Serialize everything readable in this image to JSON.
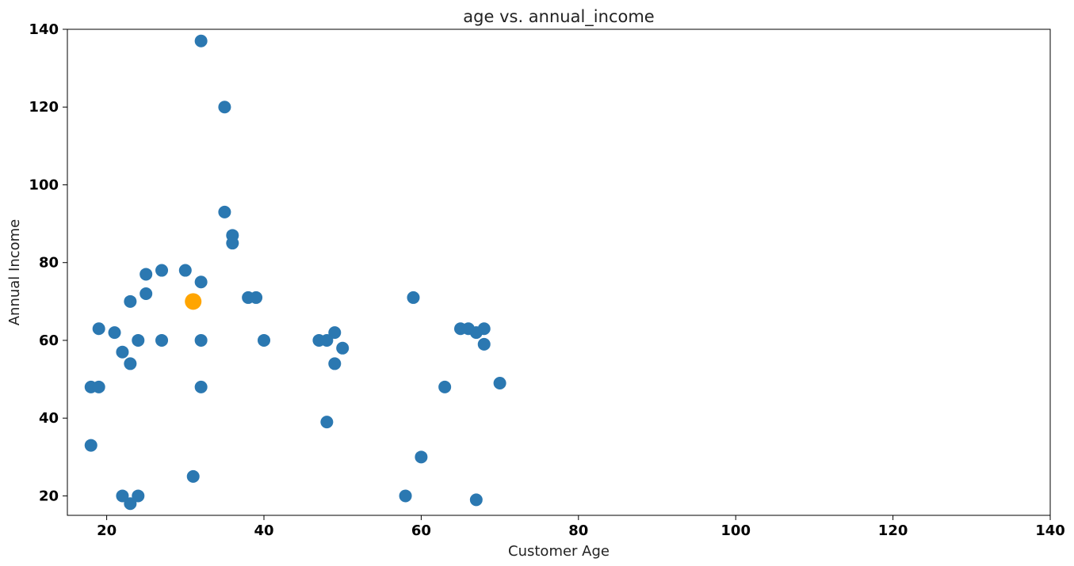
{
  "chart_data": {
    "type": "scatter",
    "title": "age vs. annual_income",
    "xlabel": "Customer Age",
    "ylabel": "Annual Income",
    "xlim": [
      15,
      140
    ],
    "ylim": [
      15,
      140
    ],
    "xticks": [
      20,
      40,
      60,
      80,
      100,
      120,
      140
    ],
    "yticks": [
      20,
      40,
      60,
      80,
      100,
      120,
      140
    ],
    "grid": false,
    "colors": {
      "points": "#2b78b1",
      "highlight": "#ffa500"
    },
    "series": [
      {
        "points": [
          [
            32,
            137
          ],
          [
            35,
            120
          ],
          [
            35,
            93
          ],
          [
            36,
            87
          ],
          [
            36,
            85
          ],
          [
            30,
            78
          ],
          [
            27,
            78
          ],
          [
            25,
            77
          ],
          [
            32,
            75
          ],
          [
            25,
            72
          ],
          [
            38,
            71
          ],
          [
            39,
            71
          ],
          [
            59,
            71
          ],
          [
            23,
            70
          ],
          [
            19,
            63
          ],
          [
            21,
            62
          ],
          [
            65,
            63
          ],
          [
            66,
            63
          ],
          [
            68,
            63
          ],
          [
            67,
            62
          ],
          [
            49,
            62
          ],
          [
            24,
            60
          ],
          [
            27,
            60
          ],
          [
            32,
            60
          ],
          [
            40,
            60
          ],
          [
            47,
            60
          ],
          [
            48,
            60
          ],
          [
            68,
            59
          ],
          [
            50,
            58
          ],
          [
            22,
            57
          ],
          [
            23,
            54
          ],
          [
            49,
            54
          ],
          [
            70,
            49
          ],
          [
            18,
            48
          ],
          [
            19,
            48
          ],
          [
            32,
            48
          ],
          [
            63,
            48
          ],
          [
            48,
            39
          ],
          [
            18,
            33
          ],
          [
            60,
            30
          ],
          [
            31,
            25
          ],
          [
            22,
            20
          ],
          [
            24,
            20
          ],
          [
            58,
            20
          ],
          [
            67,
            19
          ],
          [
            23,
            18
          ]
        ]
      },
      {
        "points": [
          [
            31,
            70
          ]
        ]
      }
    ]
  }
}
